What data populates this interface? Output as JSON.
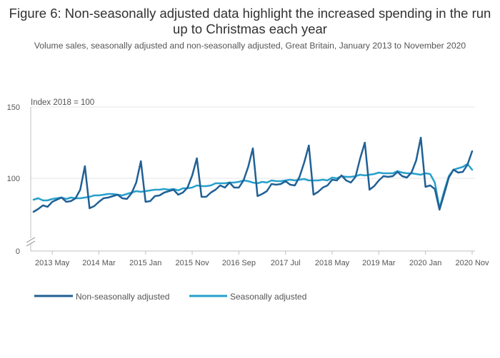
{
  "title": "Figure 6: Non-seasonally adjusted data highlight the increased spending in the run up to Christmas each year",
  "subtitle": "Volume sales, seasonally adjusted and non-seasonally adjusted, Great Britain, January 2013 to November 2020",
  "chart_data": {
    "type": "line",
    "title": "Figure 6: Non-seasonally adjusted data highlight the increased spending in the run up to Christmas each year",
    "subtitle": "Volume sales, seasonally adjusted and non-seasonally adjusted, Great Britain, January 2013 to November 2020",
    "unit_label": "Index 2018 = 100",
    "xlabel": "",
    "ylabel": "",
    "x_start": "2013 Jan",
    "x_end": "2020 Nov",
    "y_ticks": [
      0,
      100,
      150
    ],
    "y_axis_break": true,
    "ylim": [
      70,
      150
    ],
    "x_tick_labels": [
      "2013 May",
      "2014 Mar",
      "2015 Jan",
      "2015 Nov",
      "2016 Sep",
      "2017 Jul",
      "2018 May",
      "2019 Mar",
      "2020 Jan",
      "2020 Nov"
    ],
    "x_tick_index": [
      4,
      14,
      24,
      34,
      44,
      54,
      64,
      74,
      84,
      94
    ],
    "colors": {
      "nsa": "#206095",
      "sa": "#27a0cc"
    },
    "series": [
      {
        "name": "Non-seasonally adjusted",
        "values": [
          76.5,
          78.5,
          81,
          80,
          83.5,
          85,
          86.5,
          83.5,
          84,
          86,
          92,
          108.5,
          79,
          80.5,
          83.5,
          86,
          86.5,
          87.5,
          88.5,
          86,
          85.5,
          89.5,
          97,
          112,
          83.5,
          84,
          87.5,
          88,
          90,
          91,
          92,
          88.5,
          90,
          93.5,
          102,
          114,
          87,
          87,
          90,
          92,
          95,
          93.5,
          97,
          93.5,
          93.5,
          98.5,
          108,
          121,
          87.5,
          89,
          91,
          96,
          95.5,
          96,
          98,
          95.5,
          95,
          101,
          111,
          123,
          88.5,
          90.5,
          93.5,
          95,
          99,
          98.5,
          102,
          98.5,
          97,
          101,
          114,
          125,
          92,
          94.5,
          98.5,
          101.5,
          101,
          101.5,
          104.5,
          101.5,
          100.5,
          104,
          112.5,
          128.5,
          94,
          95,
          92.5,
          78,
          89,
          100.5,
          106,
          104,
          104.5,
          109.5,
          119
        ]
      },
      {
        "name": "Seasonally adjusted",
        "values": [
          85,
          86,
          84.5,
          84.5,
          85.5,
          86,
          86.5,
          85.5,
          86.5,
          86,
          86,
          86.5,
          87,
          88,
          88,
          88.5,
          89,
          89,
          88.5,
          88,
          89,
          90,
          91,
          90.5,
          91,
          91.5,
          92,
          92,
          92.5,
          92,
          92.5,
          91.5,
          93,
          93,
          93.5,
          95,
          94.5,
          94.5,
          95,
          96.5,
          96.5,
          96.5,
          97,
          97,
          97.5,
          98.5,
          98,
          97,
          96.5,
          97.5,
          97,
          98.5,
          98,
          98,
          98.5,
          99,
          98.5,
          99,
          99.5,
          98.5,
          98.5,
          98.5,
          99,
          98.5,
          100.5,
          100,
          101.5,
          101,
          101,
          101.5,
          102.5,
          102,
          102.5,
          103,
          104,
          103.5,
          103.5,
          103.5,
          105,
          104,
          103.5,
          103.5,
          103,
          102.5,
          103.5,
          103,
          97,
          79,
          91,
          101.5,
          106,
          107,
          108,
          110,
          106
        ]
      }
    ]
  }
}
